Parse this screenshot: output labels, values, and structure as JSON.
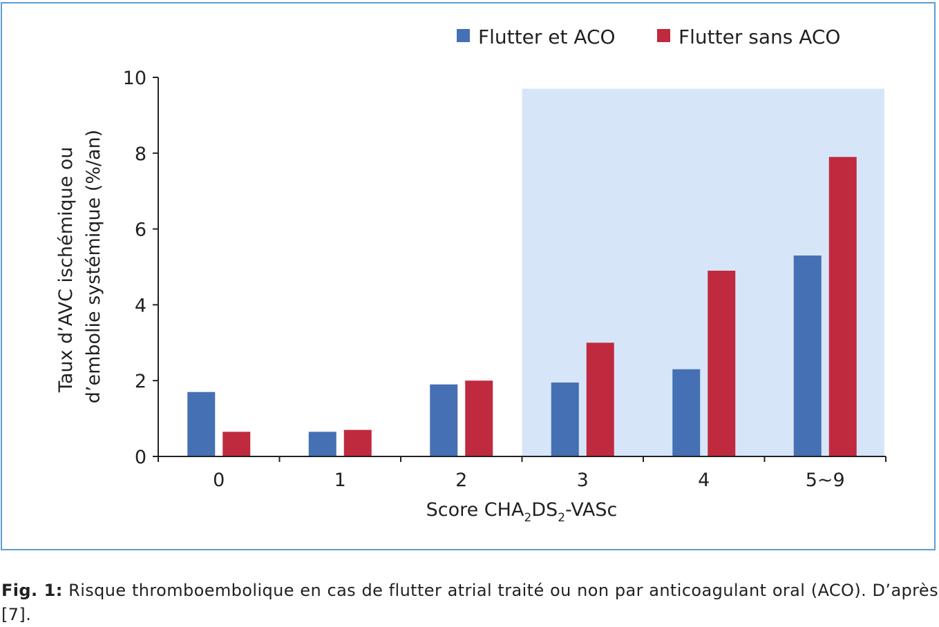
{
  "chart_data": {
    "type": "bar",
    "categories": [
      "0",
      "1",
      "2",
      "3",
      "4",
      "5~9"
    ],
    "series": [
      {
        "name": "Flutter et ACO",
        "color": "#4570b3",
        "values": [
          1.7,
          0.65,
          1.9,
          1.95,
          2.3,
          5.3
        ]
      },
      {
        "name": "Flutter sans ACO",
        "color": "#bf2a3e",
        "values": [
          0.65,
          0.7,
          2.0,
          3.0,
          4.9,
          7.9
        ]
      }
    ],
    "ylim": [
      0,
      10
    ],
    "yticks": [
      "0",
      "2",
      "4",
      "6",
      "8",
      "10"
    ],
    "ylabel_line1": "Taux d’AVC ischémique ou",
    "ylabel_line2": "d’embolie systémique (%/an)",
    "xlabel_parts": [
      "Score CHA",
      "2",
      "DS",
      "2",
      "-VASc"
    ],
    "highlight_categories": [
      "3",
      "4",
      "5~9"
    ],
    "highlight_color": "#d6e6f8",
    "highlight_top": 9.7,
    "legend_position": "top-right",
    "grid": false
  },
  "caption": {
    "label": "Fig. 1:",
    "text": " Risque thromboembolique en cas de flutter atrial traité ou non par anticoagulant oral (ACO). D’après [7]."
  }
}
